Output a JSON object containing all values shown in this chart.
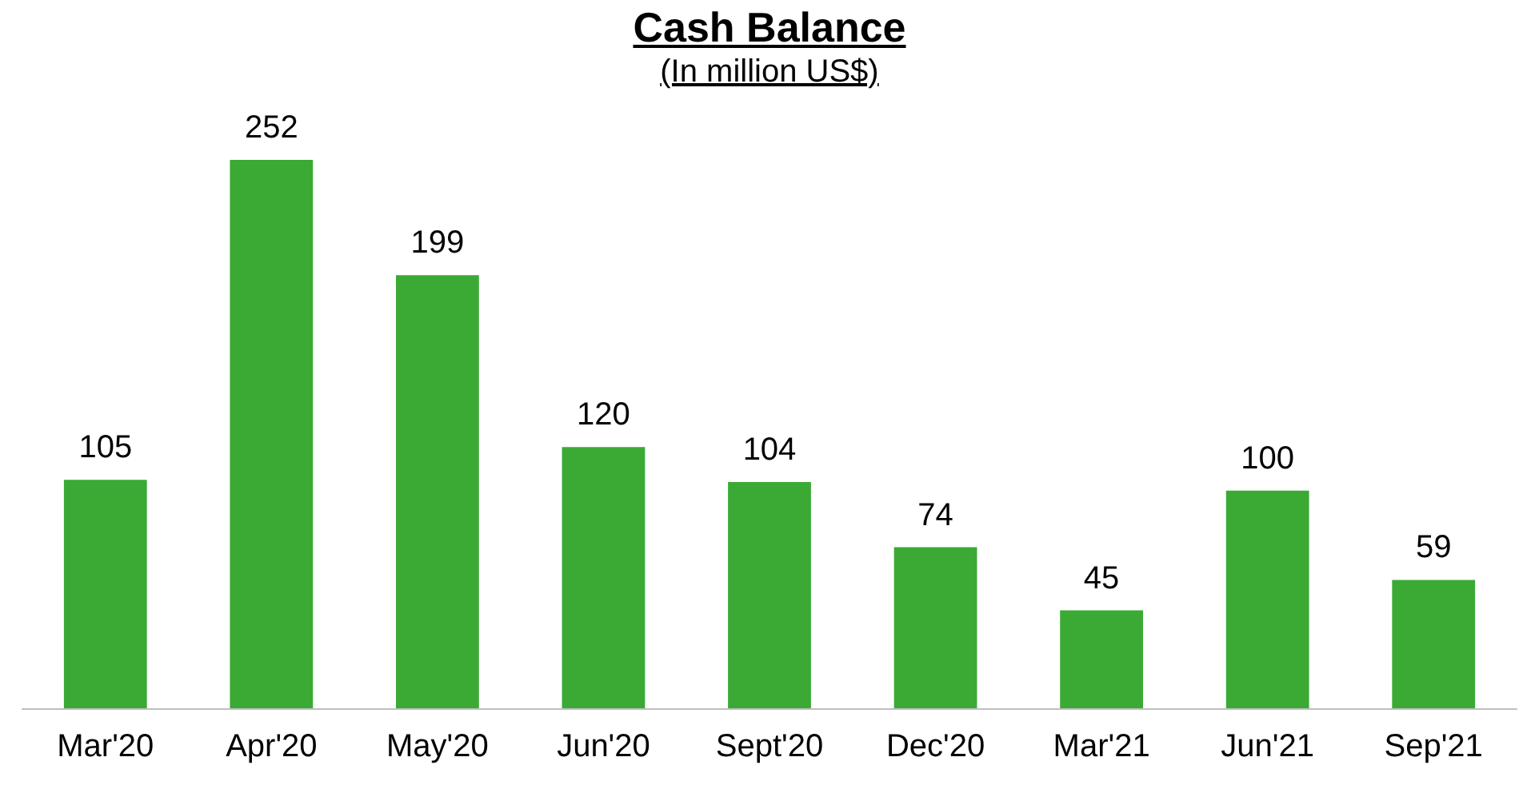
{
  "chart_data": {
    "type": "bar",
    "title": "Cash Balance",
    "subtitle": "(In million US$)",
    "categories": [
      "Mar'20",
      "Apr'20",
      "May'20",
      "Jun'20",
      "Sept'20",
      "Dec'20",
      "Mar'21",
      "Jun'21",
      "Sep'21"
    ],
    "values": [
      105,
      252,
      199,
      120,
      104,
      74,
      45,
      100,
      59
    ],
    "color": "#3aaa35",
    "data_labels": true
  }
}
